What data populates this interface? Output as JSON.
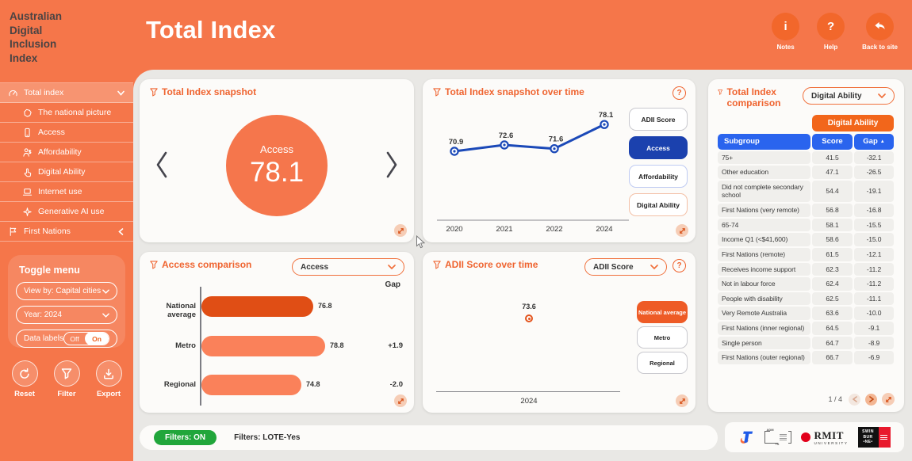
{
  "app": {
    "logo_lines": [
      "Australian",
      "Digital",
      "Inclusion",
      "Index"
    ],
    "title": "Total Index",
    "header_actions": [
      {
        "label": "Notes",
        "icon": "info-icon",
        "glyph": "i"
      },
      {
        "label": "Help",
        "icon": "question-icon",
        "glyph": "?"
      },
      {
        "label": "Back to site",
        "icon": "back-arrow-icon",
        "glyph": ""
      }
    ]
  },
  "sidebar": {
    "items": [
      {
        "label": "Total index",
        "icon": "gauge-icon",
        "selected": true,
        "indent": false,
        "chevron": "down"
      },
      {
        "label": "The national picture",
        "icon": "australia-map-icon",
        "indent": true
      },
      {
        "label": "Access",
        "icon": "phone-icon",
        "indent": true
      },
      {
        "label": "Affordability",
        "icon": "person-dollar-icon",
        "indent": true
      },
      {
        "label": "Digital Ability",
        "icon": "hand-tap-icon",
        "indent": true
      },
      {
        "label": "Internet use",
        "icon": "laptop-icon",
        "indent": true
      },
      {
        "label": "Generative AI use",
        "icon": "ai-sparkle-icon",
        "indent": true
      },
      {
        "label": "First Nations",
        "icon": "flag-icon",
        "indent": false,
        "chevron": "left"
      }
    ],
    "toggle_menu": {
      "title": "Toggle menu",
      "view_by": "View by: Capital cities",
      "year": "Year: 2024",
      "data_labels_label": "Data labels",
      "toggle_off": "Off",
      "toggle_on": "On"
    },
    "actions": [
      {
        "label": "Reset",
        "icon": "reset-icon"
      },
      {
        "label": "Filter",
        "icon": "filter-icon"
      },
      {
        "label": "Export",
        "icon": "export-icon"
      }
    ]
  },
  "cards": {
    "snapshot": {
      "title": "Total Index snapshot",
      "dimension": "Access",
      "value": "78.1"
    },
    "overtime": {
      "title": "Total Index snapshot over time",
      "buttons": [
        {
          "label": "ADII Score",
          "state": "default"
        },
        {
          "label": "Access",
          "state": "selected-blue"
        },
        {
          "label": "Affordability",
          "state": "outline-blue"
        },
        {
          "label": "Digital Ability",
          "state": "outline-orange"
        }
      ]
    },
    "access_comparison": {
      "title": "Access comparison",
      "dropdown": "Access",
      "gap_header": "Gap"
    },
    "adii_overtime": {
      "title": "ADII Score over time",
      "dropdown": "ADII Score",
      "buttons": [
        {
          "label": "National average",
          "state": "selected-orange"
        },
        {
          "label": "Metro",
          "state": "default"
        },
        {
          "label": "Regional",
          "state": "default"
        }
      ]
    },
    "comparison_table": {
      "title": "Total Index comparison",
      "dropdown": "Digital Ability",
      "group_header": "Digital Ability",
      "columns": [
        "Subgroup",
        "Score",
        "Gap"
      ],
      "sort_glyph": "▲",
      "rows": [
        [
          "75+",
          "41.5",
          "-32.1"
        ],
        [
          "Other education",
          "47.1",
          "-26.5"
        ],
        [
          "Did not complete secondary school",
          "54.4",
          "-19.1"
        ],
        [
          "First Nations (very remote)",
          "56.8",
          "-16.8"
        ],
        [
          "65-74",
          "58.1",
          "-15.5"
        ],
        [
          "Income Q1 (<$41,600)",
          "58.6",
          "-15.0"
        ],
        [
          "First Nations (remote)",
          "61.5",
          "-12.1"
        ],
        [
          "Receives income support",
          "62.3",
          "-11.2"
        ],
        [
          "Not in labour force",
          "62.4",
          "-11.2"
        ],
        [
          "People with disability",
          "62.5",
          "-11.1"
        ],
        [
          "Very Remote Australia",
          "63.6",
          "-10.0"
        ],
        [
          "First Nations (inner regional)",
          "64.5",
          "-9.1"
        ],
        [
          "Single person",
          "64.7",
          "-8.9"
        ],
        [
          "First Nations (outer regional)",
          "66.7",
          "-6.9"
        ]
      ],
      "pagination": "1 / 4"
    }
  },
  "chart_data": [
    {
      "type": "line",
      "title": "Total Index snapshot over time",
      "x": [
        "2020",
        "2021",
        "2022",
        "2024"
      ],
      "series": [
        {
          "name": "Access",
          "values": [
            70.9,
            72.6,
            71.6,
            78.1
          ]
        }
      ],
      "ylim": [
        68,
        80
      ],
      "grid": false,
      "line_color": "#1b49b8"
    },
    {
      "type": "bar",
      "title": "Access comparison",
      "categories": [
        "National average",
        "Metro",
        "Regional"
      ],
      "values": [
        76.8,
        78.8,
        74.8
      ],
      "gaps": [
        "",
        "+1.9",
        "-2.0"
      ],
      "bar_colors": [
        "#E04E15",
        "#FA815A",
        "#FA815A"
      ],
      "orientation": "horizontal"
    },
    {
      "type": "scatter",
      "title": "ADII Score over time",
      "x": [
        "2024"
      ],
      "values": [
        73.6
      ],
      "point_color": "#E3541D"
    }
  ],
  "footer": {
    "filters_badge": "Filters: ON",
    "filters_text": "Filters: LOTE-Yes",
    "logos": {
      "adms_top": "ADM",
      "adms_plus": "+S",
      "rmit_name": "RMIT",
      "rmit_sub": "UNIVERSITY",
      "swinburne_lines": [
        "SWIN",
        "BUR",
        "•NE•"
      ]
    }
  },
  "colors": {
    "background_orange": "#F5764A",
    "card_bg": "#FCFBF9",
    "panel_gray": "#E9E8E5",
    "accent_orange": "#EF6430",
    "dark_bar": "#E04E15",
    "light_bar": "#FA815A",
    "line_blue": "#1b49b8",
    "table_header_blue": "#2A64EE",
    "group_header_orange": "#F2661B",
    "filters_green": "#21A63B"
  }
}
